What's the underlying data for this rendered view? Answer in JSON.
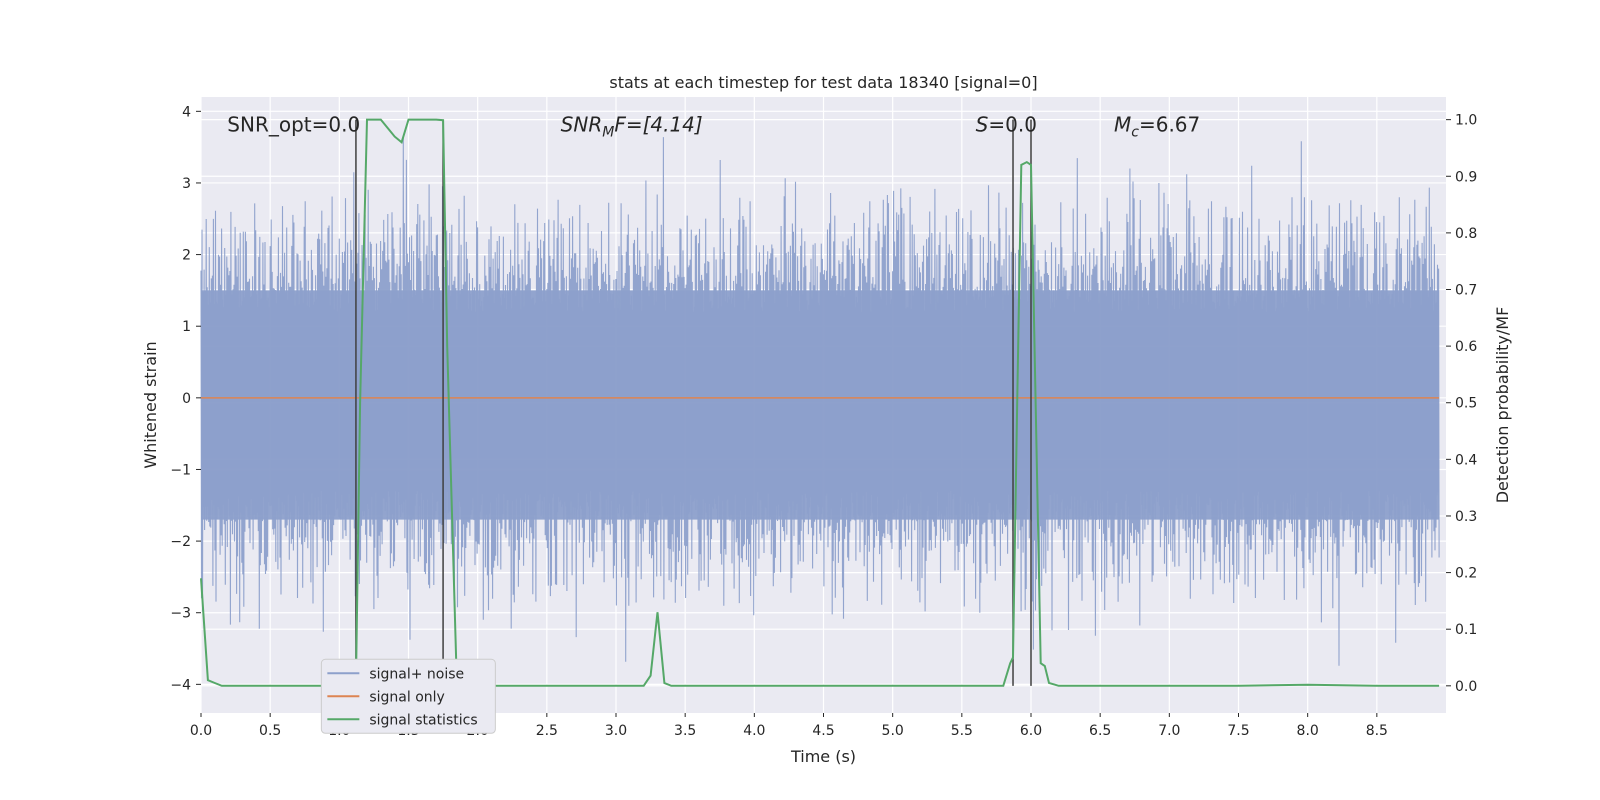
{
  "chart_data": {
    "type": "line",
    "title": "stats at each timestep for test data 18340 [signal=0]",
    "xlabel": "Time (s)",
    "ylabel_left": "Whitened strain",
    "ylabel_right": "Detection probability/MF",
    "xlim": [
      0.0,
      9.0
    ],
    "ylim_left": [
      -4.4,
      4.2
    ],
    "ylim_right": [
      -0.048,
      1.04
    ],
    "x_ticks": [
      "0.0",
      "0.5",
      "1.0",
      "1.5",
      "2.0",
      "2.5",
      "3.0",
      "3.5",
      "4.0",
      "4.5",
      "5.0",
      "5.5",
      "6.0",
      "6.5",
      "7.0",
      "7.5",
      "8.0",
      "8.5"
    ],
    "x_tick_values": [
      0.0,
      0.5,
      1.0,
      1.5,
      2.0,
      2.5,
      3.0,
      3.5,
      4.0,
      4.5,
      5.0,
      5.5,
      6.0,
      6.5,
      7.0,
      7.5,
      8.0,
      8.5
    ],
    "y_left_ticks": [
      "4",
      "3",
      "2",
      "1",
      "0",
      "−1",
      "−2",
      "−3",
      "−4"
    ],
    "y_left_tick_values": [
      4,
      3,
      2,
      1,
      0,
      -1,
      -2,
      -3,
      -4
    ],
    "y_right_ticks": [
      "1.0",
      "0.9",
      "0.8",
      "0.7",
      "0.6",
      "0.5",
      "0.4",
      "0.3",
      "0.2",
      "0.1",
      "0.0"
    ],
    "y_right_tick_values": [
      1.0,
      0.9,
      0.8,
      0.7,
      0.6,
      0.5,
      0.4,
      0.3,
      0.2,
      0.1,
      0.0
    ],
    "annotations": {
      "snr_opt": "SNR_opt=0.0",
      "snr_mf_main": "SNR",
      "snr_mf_sub": "M",
      "snr_mf_rest": "F=[4.14]",
      "s_main": "S",
      "s_rest": "=0.0",
      "mc_main": "M",
      "mc_sub": "c",
      "mc_rest": "=6.67"
    },
    "vertical_lines": [
      1.12,
      1.75,
      5.87,
      6.0
    ],
    "series": [
      {
        "name": "signal+ noise",
        "color": "#8da0cb",
        "axis": "left",
        "description": "noise, approx. range -4 to 3.9",
        "band_min": -1.7,
        "band_max": 1.5,
        "min": -4.0,
        "max": 3.9
      },
      {
        "name": "signal only",
        "color": "#dd8452",
        "axis": "left",
        "constant": 0.0
      },
      {
        "name": "signal statistics",
        "color": "#55a868",
        "axis": "right",
        "x": [
          0.0,
          0.05,
          0.1,
          0.15,
          0.5,
          1.0,
          1.1,
          1.12,
          1.15,
          1.2,
          1.3,
          1.4,
          1.45,
          1.5,
          1.6,
          1.7,
          1.75,
          1.78,
          1.85,
          1.9,
          2.0,
          2.5,
          3.0,
          3.2,
          3.25,
          3.3,
          3.35,
          3.4,
          3.5,
          4.0,
          5.0,
          5.8,
          5.85,
          5.87,
          5.9,
          5.93,
          5.97,
          6.0,
          6.07,
          6.1,
          6.13,
          6.2,
          7.0,
          7.5,
          8.0,
          8.5,
          8.95
        ],
        "values": [
          0.19,
          0.01,
          0.005,
          0.0,
          0.0,
          0.0,
          0.0,
          0.0,
          0.5,
          1.0,
          1.0,
          0.97,
          0.96,
          1.0,
          1.0,
          1.0,
          0.999,
          0.6,
          0.0,
          0.0,
          0.0,
          0.0,
          0.0,
          0.0,
          0.018,
          0.13,
          0.005,
          0.0,
          0.0,
          0.0,
          0.0,
          0.0,
          0.04,
          0.05,
          0.5,
          0.92,
          0.925,
          0.92,
          0.04,
          0.035,
          0.005,
          0.0,
          0.0,
          0.0,
          0.002,
          0.0,
          0.0
        ]
      }
    ],
    "legend": {
      "position": "lower-left",
      "entries": [
        "signal+ noise",
        "signal only",
        "signal statistics"
      ]
    },
    "grid": true,
    "colors": {
      "axes_bg": "#eaeaf2",
      "grid": "#ffffff",
      "vline": "#404040"
    }
  }
}
